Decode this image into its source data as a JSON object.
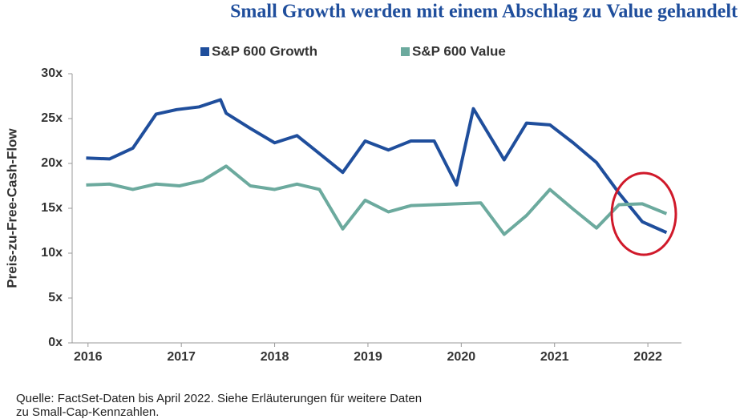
{
  "chart_data": {
    "type": "line",
    "title": "Small Growth werden mit einem Abschlag zu Value gehandelt",
    "y_label": "Preis-zu-Free-Cash-Flow",
    "source": [
      "Quelle: FactSet-Daten bis April 2022. Siehe Erläuterungen für weitere Daten",
      "zu Small-Cap-Kennzahlen."
    ],
    "legend": "top",
    "xlim": [
      2015.83,
      2022.36
    ],
    "xticks": [
      2016,
      2017,
      2018,
      2019,
      2020,
      2021,
      2022
    ],
    "ylim": [
      0,
      30
    ],
    "yticks": [
      {
        "value": 0,
        "label": "0x"
      },
      {
        "value": 5,
        "label": "5x"
      },
      {
        "value": 10,
        "label": "10x"
      },
      {
        "value": 15,
        "label": "15x"
      },
      {
        "value": 20,
        "label": "20x"
      },
      {
        "value": 25,
        "label": "25x"
      },
      {
        "value": 30,
        "label": "30x"
      }
    ],
    "grid": false,
    "series": [
      {
        "name": "S&P 600 Growth",
        "color": "#1f4e9c",
        "x": [
          2015.98,
          2016.23,
          2016.48,
          2016.73,
          2016.95,
          2017.19,
          2017.42,
          2017.48,
          2017.74,
          2018.0,
          2018.24,
          2018.48,
          2018.73,
          2018.97,
          2019.22,
          2019.46,
          2019.71,
          2019.95,
          2020.13,
          2020.46,
          2020.7,
          2020.95,
          2021.2,
          2021.45,
          2021.69,
          2021.94,
          2022.2
        ],
        "values": [
          20.6,
          20.5,
          21.7,
          25.5,
          26.0,
          26.3,
          27.1,
          25.6,
          23.9,
          22.3,
          23.1,
          21.1,
          19.0,
          22.5,
          21.5,
          22.5,
          22.5,
          17.6,
          26.1,
          20.4,
          24.5,
          24.3,
          22.3,
          20.1,
          16.7,
          13.5,
          12.3
        ]
      },
      {
        "name": "S&P 600 Value",
        "color": "#6caa9e",
        "x": [
          2015.98,
          2016.23,
          2016.48,
          2016.73,
          2016.98,
          2017.23,
          2017.48,
          2017.74,
          2018.0,
          2018.24,
          2018.48,
          2018.73,
          2018.97,
          2019.22,
          2019.46,
          2020.21,
          2020.46,
          2020.7,
          2020.95,
          2021.2,
          2021.45,
          2021.69,
          2021.94,
          2022.2
        ],
        "values": [
          17.6,
          17.7,
          17.1,
          17.7,
          17.5,
          18.1,
          19.7,
          17.5,
          17.1,
          17.7,
          17.1,
          12.7,
          15.9,
          14.6,
          15.3,
          15.6,
          12.1,
          14.2,
          17.1,
          14.9,
          12.8,
          15.4,
          15.5,
          14.4
        ]
      }
    ]
  }
}
